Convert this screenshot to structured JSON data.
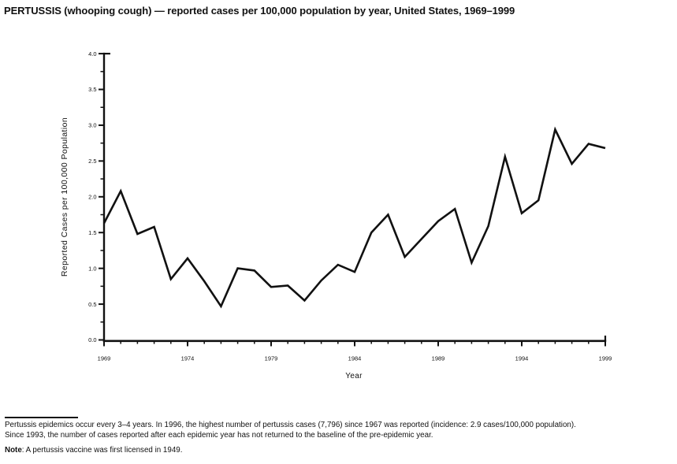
{
  "page": {
    "title": "PERTUSSIS (whooping cough) — reported cases per 100,000 population by year, United States, 1969–1999"
  },
  "chart_data": {
    "type": "line",
    "title": "PERTUSSIS (whooping cough) — reported cases per 100,000 population by year, United States, 1969–1999",
    "xlabel": "Year",
    "ylabel": "Reported Cases per 100,000 Population",
    "x": [
      1969,
      1970,
      1971,
      1972,
      1973,
      1974,
      1975,
      1976,
      1977,
      1978,
      1979,
      1980,
      1981,
      1982,
      1983,
      1984,
      1985,
      1986,
      1987,
      1988,
      1989,
      1990,
      1991,
      1992,
      1993,
      1994,
      1995,
      1996,
      1997,
      1998,
      1999
    ],
    "values": [
      1.63,
      2.08,
      1.48,
      1.58,
      0.85,
      1.14,
      0.82,
      0.47,
      1.0,
      0.97,
      0.74,
      0.76,
      0.55,
      0.83,
      1.05,
      0.95,
      1.5,
      1.75,
      1.16,
      1.41,
      1.66,
      1.83,
      1.08,
      1.59,
      2.56,
      1.77,
      1.95,
      2.94,
      2.46,
      2.74,
      2.68
    ],
    "xlim": [
      1969,
      1999
    ],
    "ylim": [
      0,
      4.0
    ],
    "x_ticks": [
      1969,
      1974,
      1979,
      1984,
      1989,
      1994,
      1999
    ],
    "x_tick_labels": [
      "1969",
      "1974",
      "1979",
      "1984",
      "1989",
      "1994",
      "1999"
    ],
    "y_ticks": [
      0,
      0.5,
      1,
      1.5,
      2,
      2.5,
      3,
      3.5,
      4
    ],
    "y_tick_labels": [
      "0.0",
      "0.5",
      "1.0",
      "1.5",
      "2.0",
      "2.5",
      "3.0",
      "3.5",
      "4.0"
    ],
    "x_minor_step": 1,
    "y_minor_step": 0.25,
    "grid": false,
    "legend": false,
    "line_color": "#111111"
  },
  "footnote": {
    "lines": [
      "Pertussis epidemics occur every 3–4 years. In 1996, the highest number of pertussis cases (7,796) since 1967 was reported (incidence: 2.9 cases/100,000 population).",
      "Since 1993, the number of cases reported after each epidemic year has not returned to the baseline of the pre-epidemic year."
    ]
  },
  "note": {
    "label": "Note",
    "text": ": A pertussis vaccine was first licensed in 1949."
  }
}
